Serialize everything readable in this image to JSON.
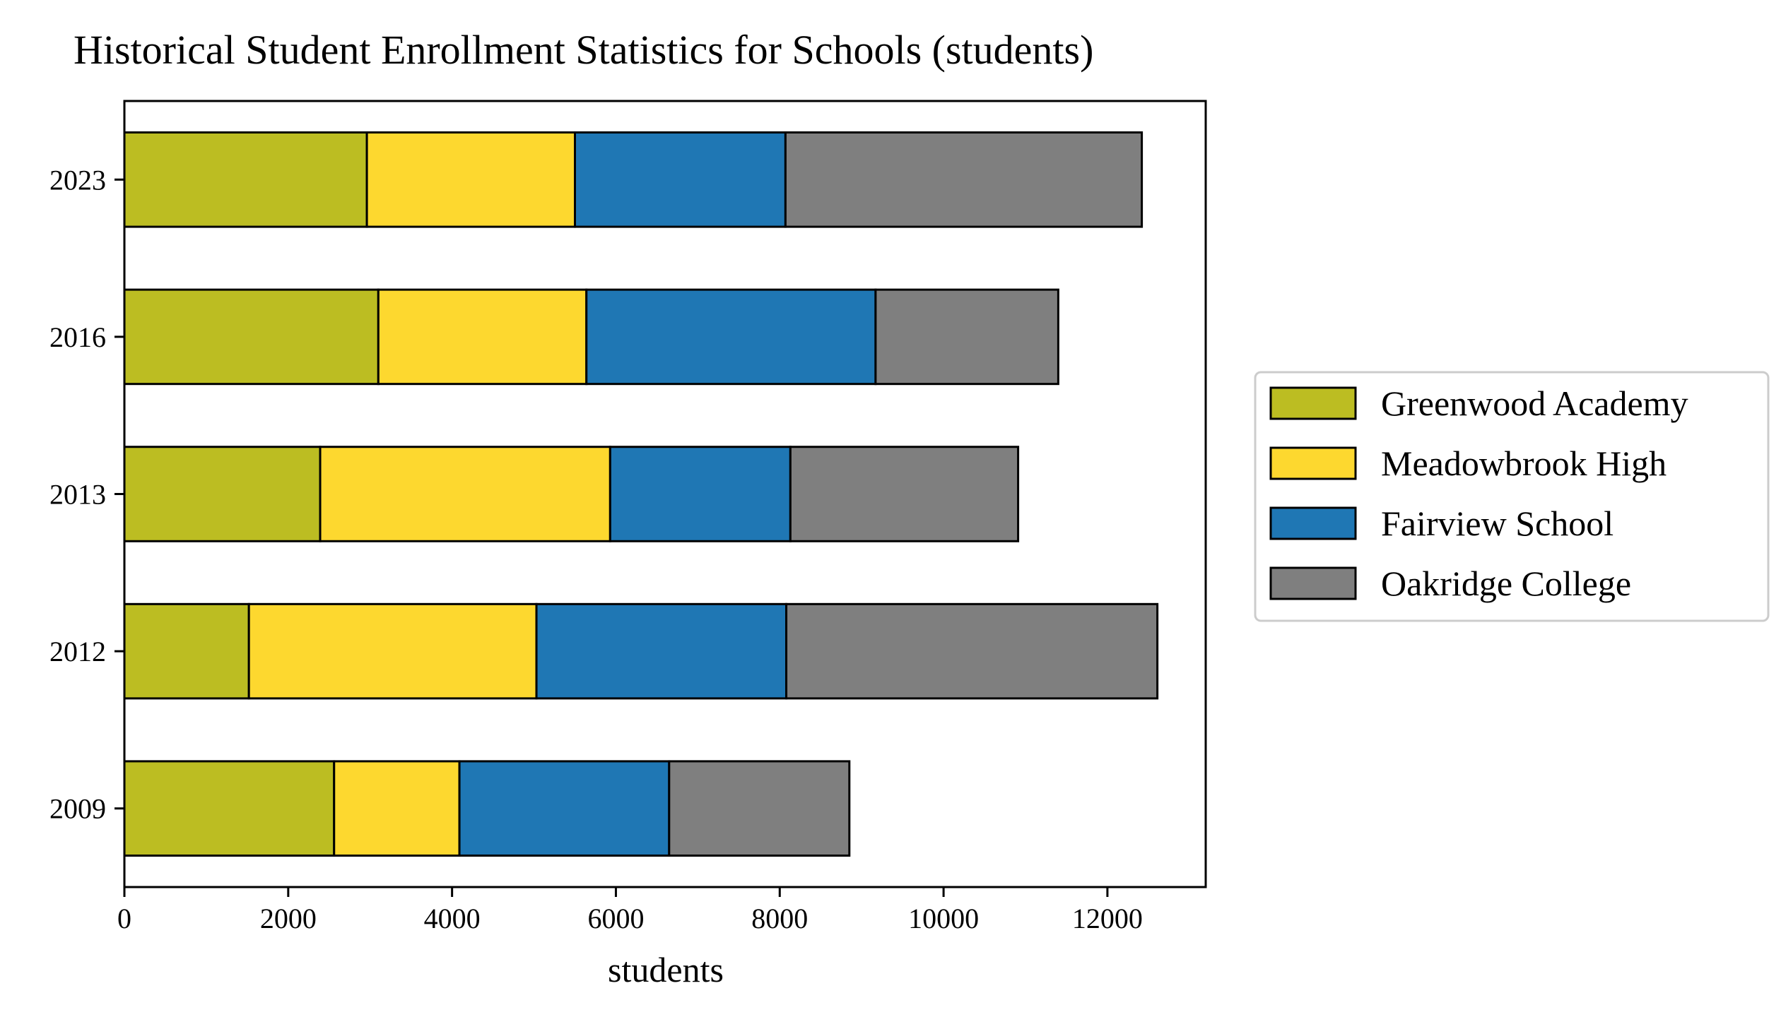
{
  "chart_data": {
    "type": "bar",
    "orientation": "horizontal",
    "stacked": true,
    "title": "Historical Student Enrollment Statistics for Schools (students)",
    "xlabel": "students",
    "ylabel": "",
    "xlim": [
      0,
      13200
    ],
    "xticks": [
      0,
      2000,
      4000,
      6000,
      8000,
      10000,
      12000
    ],
    "categories": [
      "2009",
      "2012",
      "2013",
      "2016",
      "2023"
    ],
    "series": [
      {
        "name": "Greenwood Academy",
        "color": "#bcbd22",
        "values": [
          2560,
          1520,
          2390,
          3100,
          2960
        ]
      },
      {
        "name": "Meadowbrook High",
        "color": "#fdd82f",
        "values": [
          1530,
          3510,
          3540,
          2540,
          2540
        ]
      },
      {
        "name": "Fairview School",
        "color": "#1f77b4",
        "values": [
          2560,
          3050,
          2200,
          3530,
          2570
        ]
      },
      {
        "name": "Oakridge College",
        "color": "#7f7f7f",
        "values": [
          2200,
          4530,
          2780,
          2230,
          4350
        ]
      }
    ],
    "grid": false,
    "legend_position": "right"
  }
}
